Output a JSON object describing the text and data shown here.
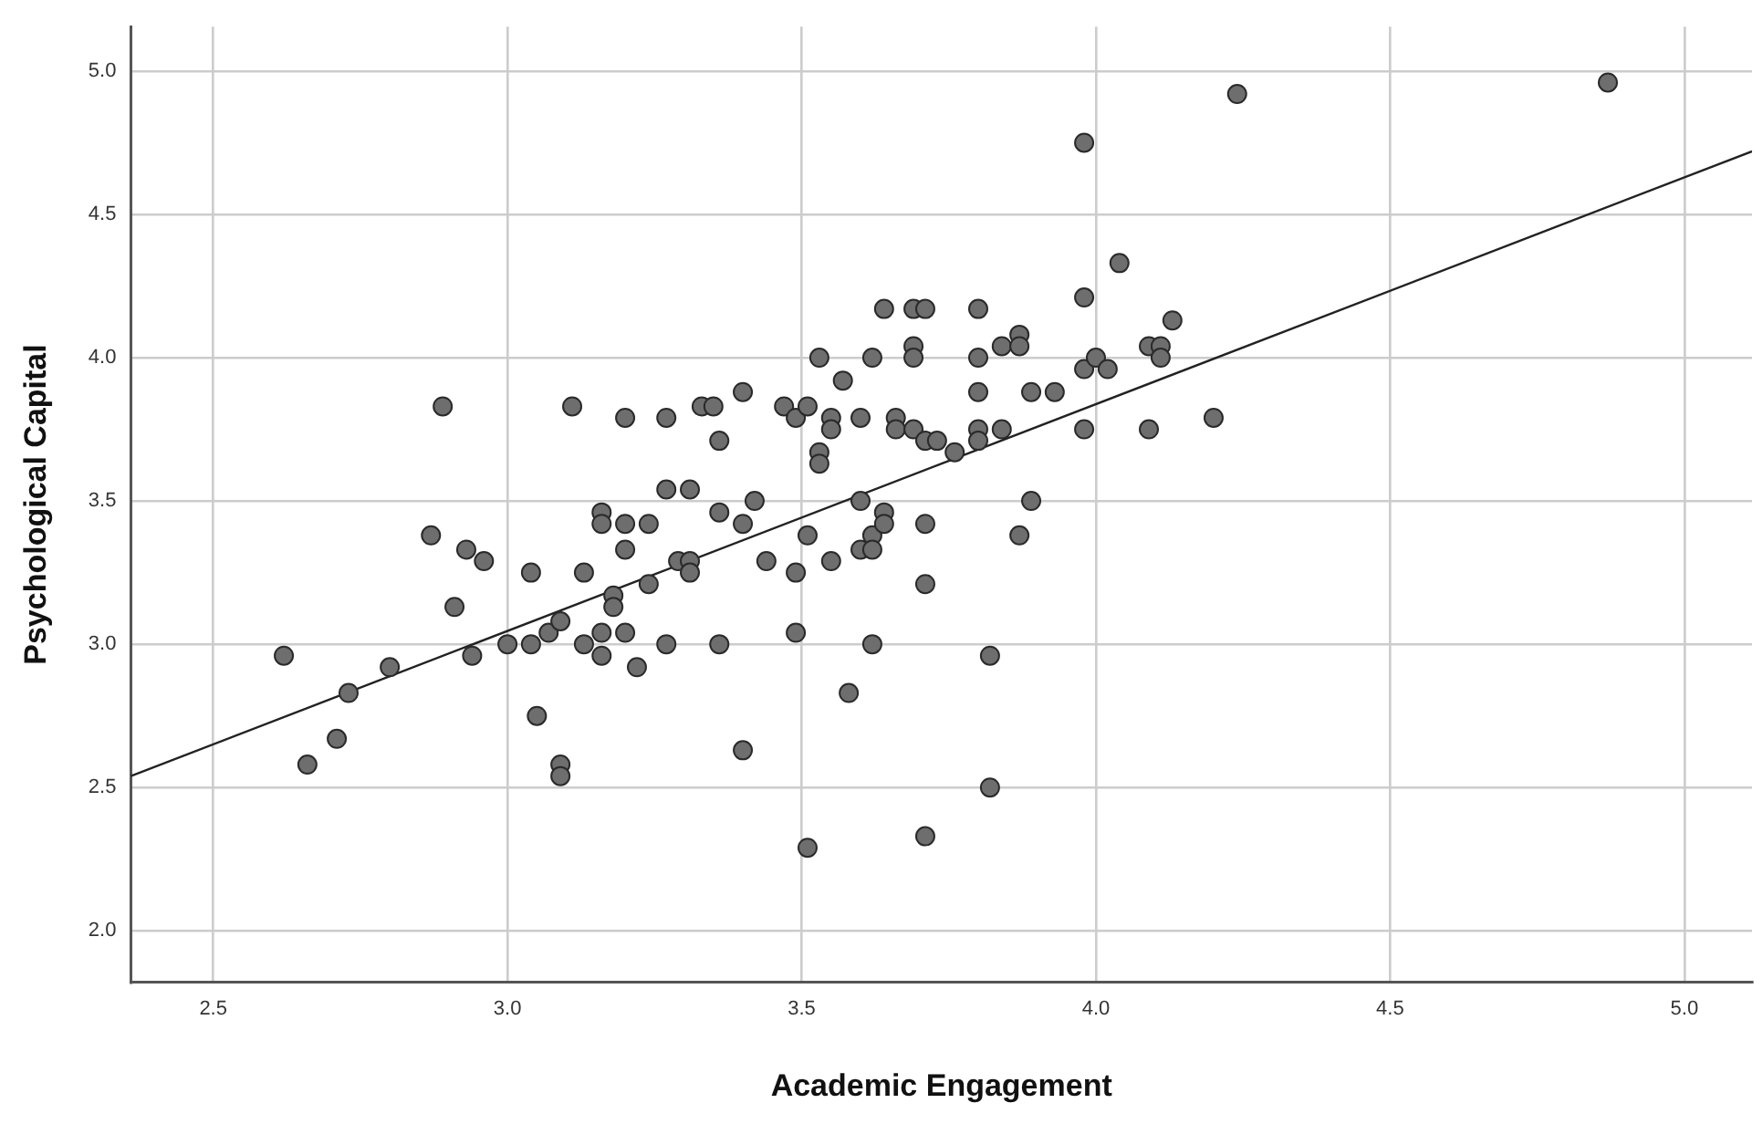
{
  "chart_data": {
    "type": "scatter",
    "xlabel": "Academic Engagement",
    "ylabel": "Psychological Capital",
    "xlim": [
      2.36,
      5.115
    ],
    "ylim": [
      1.82,
      5.155
    ],
    "xticks": [
      {
        "value": 2.5,
        "label": "2.5"
      },
      {
        "value": 3,
        "label": "3.0"
      },
      {
        "value": 3.5,
        "label": "3.5"
      },
      {
        "value": 4,
        "label": "4.0"
      },
      {
        "value": 4.5,
        "label": "4.5"
      },
      {
        "value": 5,
        "label": "5.0"
      }
    ],
    "yticks": [
      {
        "value": 2,
        "label": "2.0"
      },
      {
        "value": 2.5,
        "label": "2.5"
      },
      {
        "value": 3,
        "label": "3.0"
      },
      {
        "value": 3.5,
        "label": "3.5"
      },
      {
        "value": 4,
        "label": "4.0"
      },
      {
        "value": 4.5,
        "label": "4.5"
      },
      {
        "value": 5,
        "label": "5.0"
      }
    ],
    "grid": true,
    "legend": false,
    "marker": "circle",
    "series": [
      {
        "color": "#6e6e6e",
        "x": [
          2.62,
          2.66,
          2.71,
          2.73,
          2.8,
          2.87,
          2.89,
          2.91,
          2.93,
          2.94,
          2.96,
          3.0,
          3.04,
          3.04,
          3.05,
          3.07,
          3.09,
          3.09,
          3.09,
          3.11,
          3.13,
          3.13,
          3.16,
          3.16,
          3.16,
          3.16,
          3.18,
          3.18,
          3.2,
          3.2,
          3.2,
          3.2,
          3.22,
          3.24,
          3.24,
          3.27,
          3.27,
          3.27,
          3.29,
          3.31,
          3.31,
          3.31,
          3.33,
          3.35,
          3.36,
          3.36,
          3.36,
          3.4,
          3.4,
          3.4,
          3.42,
          3.44,
          3.47,
          3.49,
          3.49,
          3.49,
          3.51,
          3.51,
          3.51,
          3.53,
          3.53,
          3.53,
          3.55,
          3.55,
          3.55,
          3.57,
          3.58,
          3.6,
          3.6,
          3.6,
          3.62,
          3.62,
          3.62,
          3.62,
          3.64,
          3.64,
          3.64,
          3.66,
          3.66,
          3.69,
          3.69,
          3.69,
          3.69,
          3.71,
          3.71,
          3.71,
          3.71,
          3.71,
          3.73,
          3.76,
          3.8,
          3.8,
          3.8,
          3.8,
          3.8,
          3.82,
          3.82,
          3.84,
          3.84,
          3.87,
          3.87,
          3.87,
          3.89,
          3.89,
          3.93,
          3.98,
          3.98,
          3.98,
          3.98,
          4.0,
          4.02,
          4.04,
          4.09,
          4.09,
          4.11,
          4.11,
          4.13,
          4.2,
          4.24,
          4.87
        ],
        "values": [
          2.96,
          2.58,
          2.67,
          2.83,
          2.92,
          3.38,
          3.83,
          3.13,
          3.33,
          2.96,
          3.29,
          3.0,
          3.25,
          3.0,
          2.75,
          3.04,
          3.08,
          2.58,
          2.54,
          3.83,
          3.25,
          3.0,
          3.46,
          3.42,
          3.04,
          2.96,
          3.17,
          3.13,
          3.79,
          3.42,
          3.33,
          3.04,
          2.92,
          3.42,
          3.21,
          3.79,
          3.54,
          3.0,
          3.29,
          3.54,
          3.29,
          3.25,
          3.83,
          3.83,
          3.71,
          3.46,
          3.0,
          3.88,
          3.42,
          2.63,
          3.5,
          3.29,
          3.83,
          3.79,
          3.25,
          3.04,
          3.83,
          3.38,
          2.29,
          4.0,
          3.67,
          3.63,
          3.79,
          3.75,
          3.29,
          3.92,
          2.83,
          3.79,
          3.5,
          3.33,
          4.0,
          3.38,
          3.33,
          3.0,
          4.17,
          3.46,
          3.42,
          3.79,
          3.75,
          4.17,
          4.04,
          4.0,
          3.75,
          4.17,
          3.71,
          3.42,
          3.21,
          2.33,
          3.71,
          3.67,
          4.17,
          4.0,
          3.88,
          3.75,
          3.71,
          2.96,
          2.5,
          4.04,
          3.75,
          4.08,
          4.04,
          3.38,
          3.88,
          3.5,
          3.88,
          4.75,
          4.21,
          3.96,
          3.75,
          4.0,
          3.96,
          4.33,
          4.04,
          3.75,
          4.04,
          4.0,
          4.13,
          3.79,
          4.92,
          4.96
        ]
      },
      {
        "type": "line",
        "marker": "none",
        "color": "#222222",
        "x": [
          2.36,
          5.115
        ],
        "values": [
          2.54,
          4.72
        ]
      }
    ]
  }
}
